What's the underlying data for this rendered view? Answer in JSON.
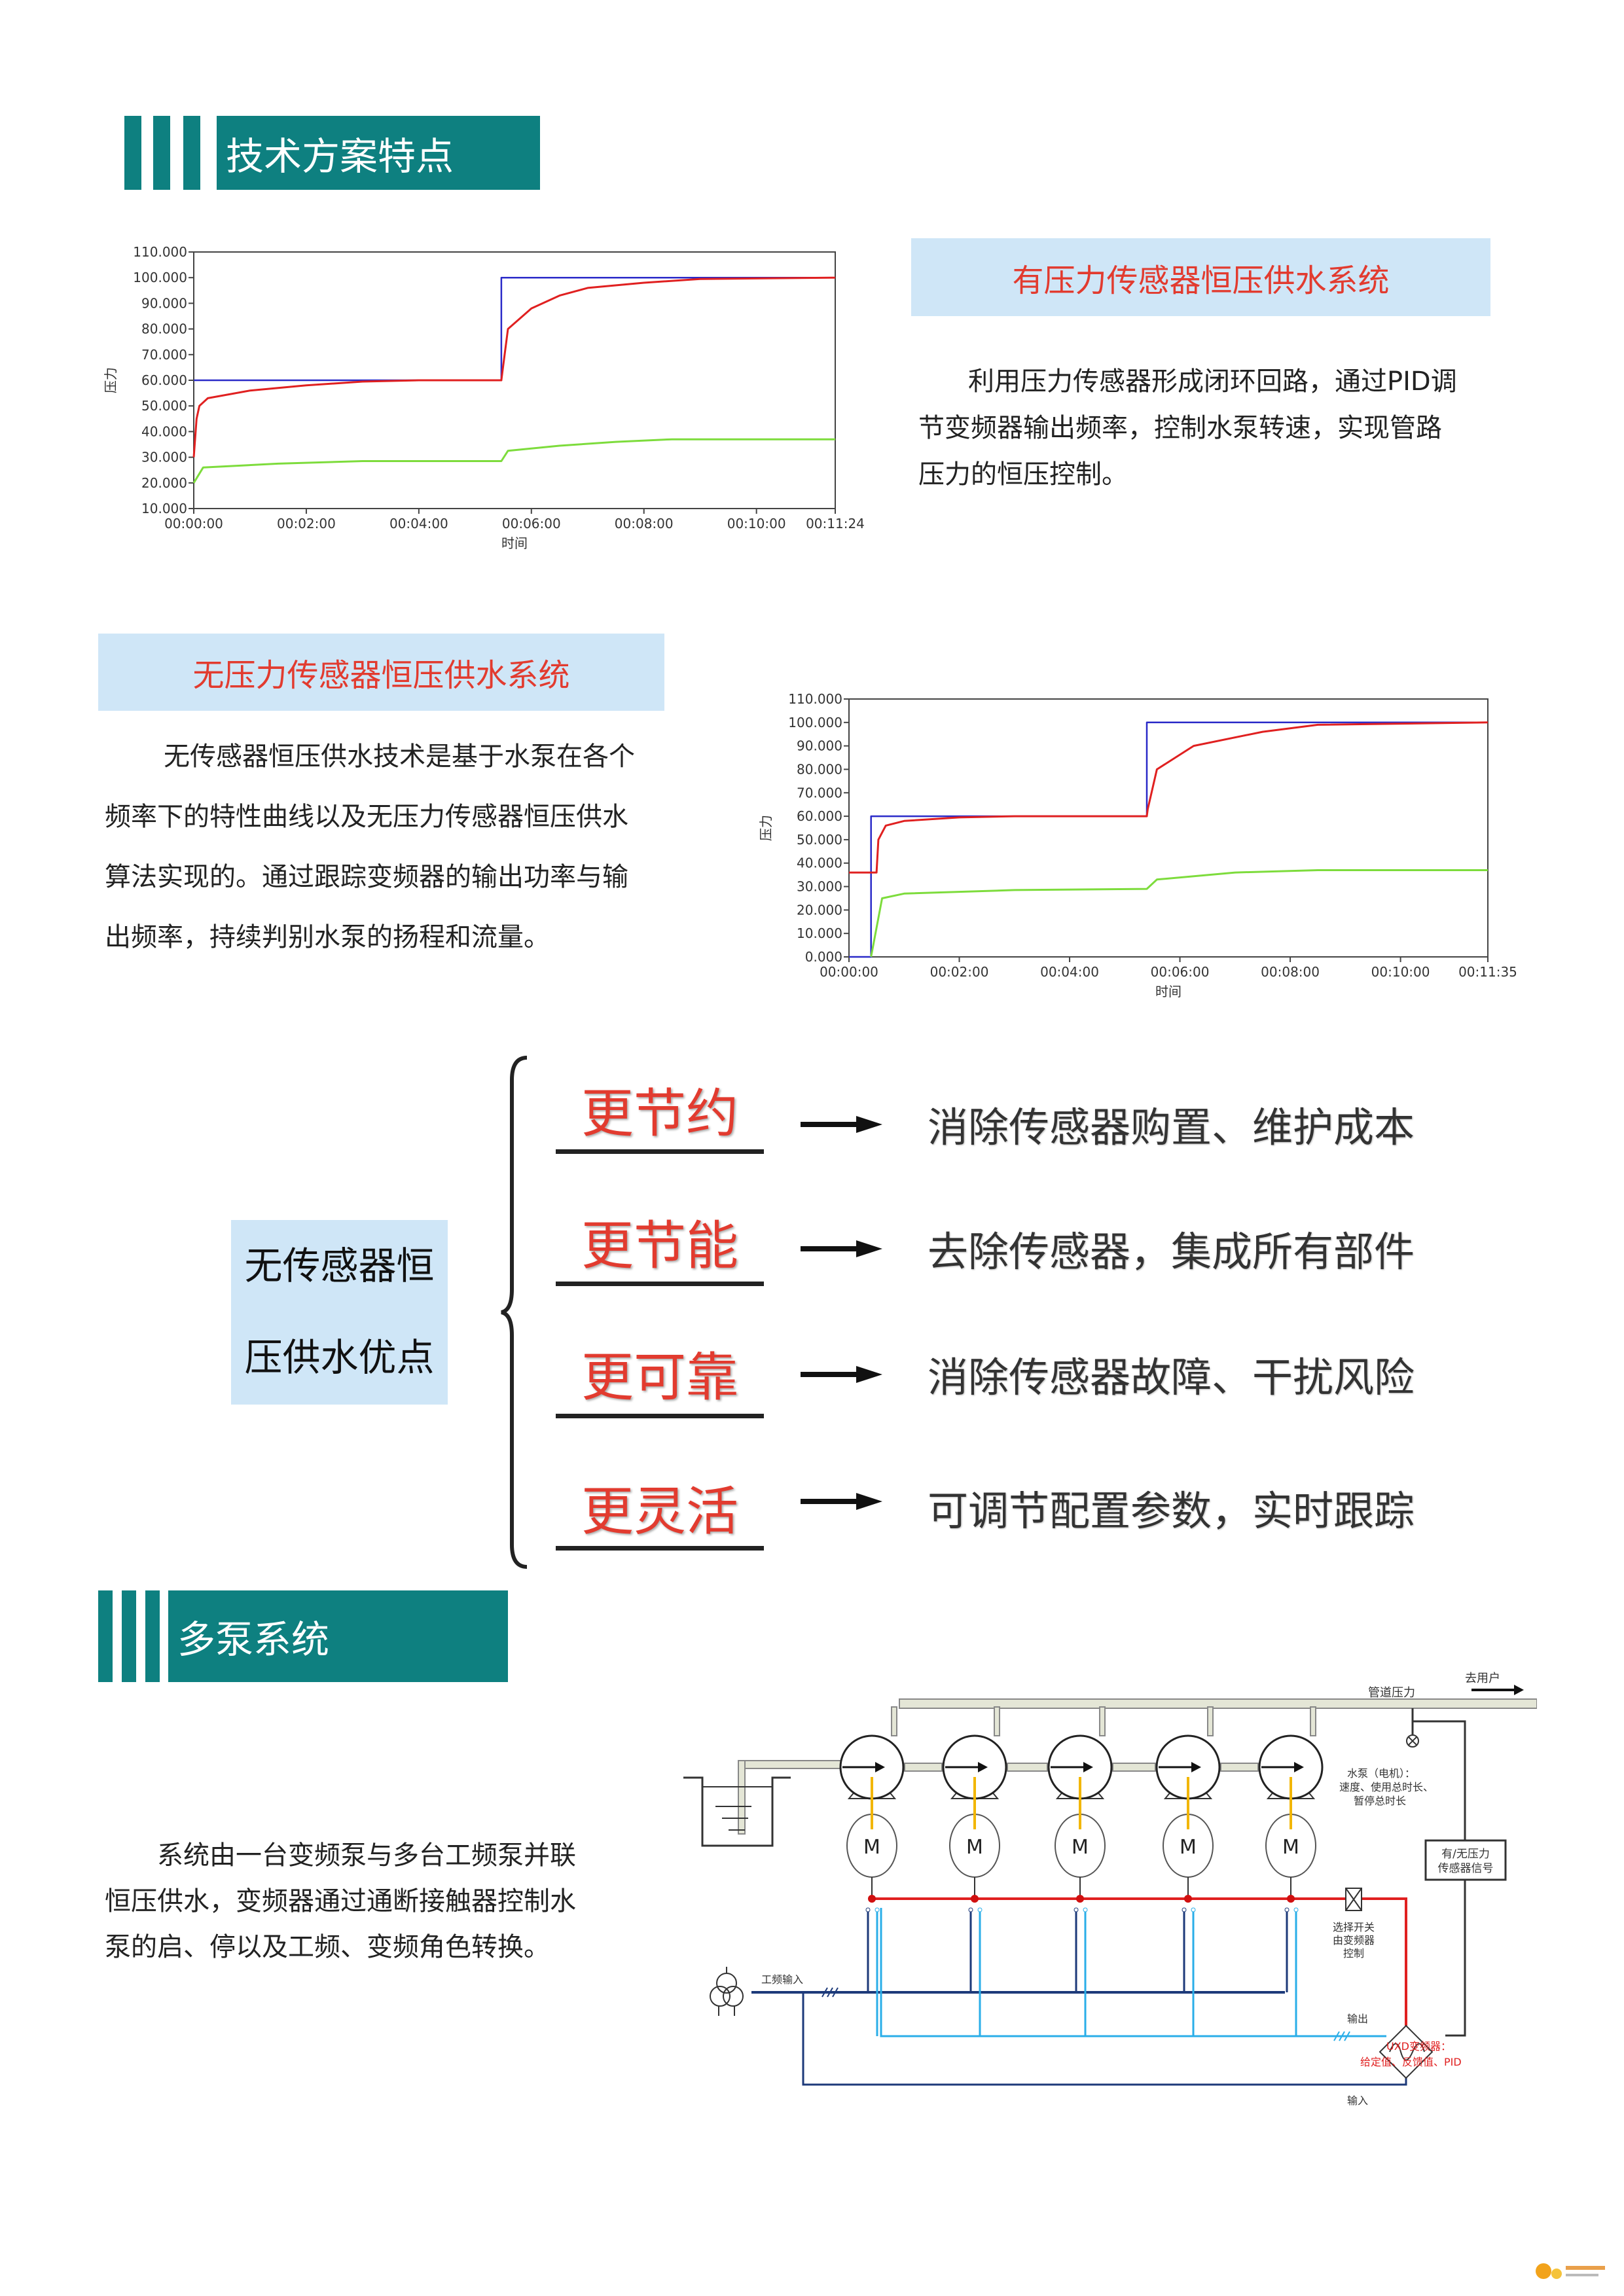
{
  "section1": {
    "title": "技术方案特点"
  },
  "with_sensor": {
    "title": "有压力传感器恒压供水系统",
    "paragraph": [
      "利用压力传感器形成闭环回路，通过PID调",
      "节变频器输出频率，控制水泵转速，实现管路",
      "压力的恒压控制。"
    ]
  },
  "without_sensor": {
    "title": "无压力传感器恒压供水系统",
    "paragraph": [
      "无传感器恒压供水技术是基于水泵在各个",
      "频率下的特性曲线以及无压力传感器恒压供水",
      "算法实现的。通过跟踪变频器的输出功率与输",
      "出频率，持续判别水泵的扬程和流量。"
    ]
  },
  "advantages": {
    "box_lines": [
      "无传感器恒",
      "压供水优点"
    ],
    "items": [
      {
        "label": "更节约",
        "text": "消除传感器购置、维护成本"
      },
      {
        "label": "更节能",
        "text": "去除传感器，集成所有部件"
      },
      {
        "label": "更可靠",
        "text": "消除传感器故障、干扰风险"
      },
      {
        "label": "更灵活",
        "text": "可调节配置参数，实时跟踪"
      }
    ]
  },
  "section2": {
    "title": "多泵系统",
    "paragraph": [
      "系统由一台变频泵与多台工频泵并联",
      "恒压供水，变频器通过通断接触器控制水",
      "泵的启、停以及工频、变频角色转换。"
    ]
  },
  "diagram": {
    "to_user": "去用户",
    "pipe_pressure": "管道压力",
    "pump_note": [
      "水泵（电机）：",
      "速度、使用总时长、",
      "暂停总时长"
    ],
    "motor_label": "M",
    "sensor_box": [
      "有/无压力",
      "传感器信号"
    ],
    "switch_note": [
      "选择开关",
      "由变频器",
      "控制"
    ],
    "mains_input": "工频输入",
    "output": "输出",
    "input": "输入",
    "inverter_note": [
      "UXD变频器：",
      "给定值、反馈值、PID"
    ],
    "colors": {
      "pipe": "#e4e6d6",
      "shaft": "#f2b600",
      "control": "#e02020",
      "mains": "#1d3a7a",
      "vfd_out": "#2aaee8"
    }
  },
  "colors": {
    "teal": "#0e8080",
    "label_bg": "#cfe6f7",
    "red_text": "#e23b2f",
    "setpoint": "#2a2ac8",
    "feedback": "#e02020",
    "frequency": "#7ddc3c"
  },
  "chart_data": [
    {
      "type": "line",
      "title": "",
      "xlabel": "时间",
      "ylabel": "压力",
      "xlim": [
        "00:00:00",
        "00:11:24"
      ],
      "ylim": [
        10,
        110
      ],
      "grid": false,
      "legend": "none",
      "x_ticks": [
        "00:00:00",
        "00:02:00",
        "00:04:00",
        "00:06:00",
        "00:08:00",
        "00:10:00",
        "00:11:24"
      ],
      "y_ticks": [
        "10.000",
        "20.000",
        "30.000",
        "40.000",
        "50.000",
        "60.000",
        "70.000",
        "80.000",
        "90.000",
        "100.000",
        "110.000"
      ],
      "series": [
        {
          "color": "#2a2ac8",
          "points": [
            [
              "00:00:00",
              60
            ],
            [
              "00:05:28",
              60
            ],
            [
              "00:05:28",
              100
            ],
            [
              "00:11:24",
              100
            ]
          ]
        },
        {
          "color": "#e02020",
          "points": [
            [
              "00:00:00",
              30
            ],
            [
              "00:00:03",
              45
            ],
            [
              "00:00:06",
              50
            ],
            [
              "00:00:15",
              53
            ],
            [
              "00:01:00",
              56
            ],
            [
              "00:02:00",
              58
            ],
            [
              "00:03:00",
              59.5
            ],
            [
              "00:04:00",
              60
            ],
            [
              "00:05:28",
              60
            ],
            [
              "00:05:29",
              63
            ],
            [
              "00:05:35",
              80
            ],
            [
              "00:06:00",
              88
            ],
            [
              "00:06:30",
              93
            ],
            [
              "00:07:00",
              96
            ],
            [
              "00:08:00",
              98
            ],
            [
              "00:09:00",
              99.5
            ],
            [
              "00:11:24",
              100
            ]
          ]
        },
        {
          "color": "#7ddc3c",
          "points": [
            [
              "00:00:00",
              20
            ],
            [
              "00:00:10",
              26
            ],
            [
              "00:01:30",
              27.5
            ],
            [
              "00:03:00",
              28.5
            ],
            [
              "00:05:28",
              28.5
            ],
            [
              "00:05:35",
              32.5
            ],
            [
              "00:06:30",
              34.5
            ],
            [
              "00:07:30",
              36
            ],
            [
              "00:08:30",
              37
            ],
            [
              "00:11:24",
              37
            ]
          ]
        }
      ]
    },
    {
      "type": "line",
      "title": "",
      "xlabel": "时间",
      "ylabel": "压力",
      "xlim": [
        "00:00:00",
        "00:11:35"
      ],
      "ylim": [
        0,
        110
      ],
      "grid": false,
      "legend": "none",
      "x_ticks": [
        "00:00:00",
        "00:02:00",
        "00:04:00",
        "00:06:00",
        "00:08:00",
        "00:10:00",
        "00:11:35"
      ],
      "y_ticks": [
        "0.000",
        "10.000",
        "20.000",
        "30.000",
        "40.000",
        "50.000",
        "60.000",
        "70.000",
        "80.000",
        "90.000",
        "100.000",
        "110.000"
      ],
      "series": [
        {
          "color": "#2a2ac8",
          "points": [
            [
              "00:00:00",
              0
            ],
            [
              "00:00:24",
              0
            ],
            [
              "00:00:24",
              60
            ],
            [
              "00:05:24",
              60
            ],
            [
              "00:05:24",
              100
            ],
            [
              "00:11:35",
              100
            ]
          ]
        },
        {
          "color": "#e02020",
          "points": [
            [
              "00:00:00",
              36
            ],
            [
              "00:00:30",
              36
            ],
            [
              "00:00:32",
              50
            ],
            [
              "00:00:40",
              56
            ],
            [
              "00:01:00",
              58
            ],
            [
              "00:02:00",
              59.5
            ],
            [
              "00:03:00",
              60
            ],
            [
              "00:05:24",
              60
            ],
            [
              "00:05:25",
              63
            ],
            [
              "00:05:35",
              80
            ],
            [
              "00:06:15",
              90
            ],
            [
              "00:07:30",
              96
            ],
            [
              "00:08:30",
              99
            ],
            [
              "00:11:35",
              100
            ]
          ]
        },
        {
          "color": "#7ddc3c",
          "points": [
            [
              "00:00:24",
              0
            ],
            [
              "00:00:36",
              25
            ],
            [
              "00:01:00",
              27
            ],
            [
              "00:03:00",
              28.5
            ],
            [
              "00:05:24",
              29
            ],
            [
              "00:05:35",
              33
            ],
            [
              "00:07:00",
              36
            ],
            [
              "00:08:30",
              37
            ],
            [
              "00:11:35",
              37
            ]
          ]
        }
      ]
    }
  ]
}
